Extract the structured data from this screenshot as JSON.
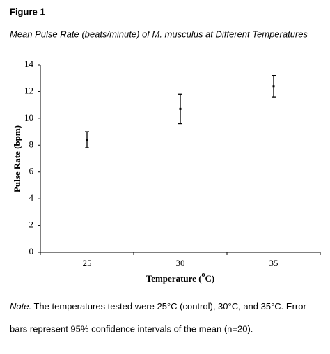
{
  "figure_label": "Figure 1",
  "note_label": "Note.",
  "note_text": "The temperatures tested were 25°C (control), 30°C, and 35°C.  Error bars represent 95% confidence intervals of the mean (n=20).",
  "chart_data": {
    "type": "errorbar",
    "title": "Mean Pulse Rate (beats/minute) of M. musculus at Different Temperatures",
    "x_label": [
      "Temperature (",
      "o",
      "C)"
    ],
    "y_label": "Pulse Rate (bpm)",
    "categories": [
      "25",
      "30",
      "35"
    ],
    "values": [
      8.4,
      10.7,
      12.4
    ],
    "errors": [
      0.6,
      1.1,
      0.8
    ],
    "color": "#000000",
    "ylim": [
      0,
      14
    ],
    "yticks": [
      0,
      2,
      4,
      6,
      8,
      10,
      12,
      14
    ],
    "grid": false
  }
}
